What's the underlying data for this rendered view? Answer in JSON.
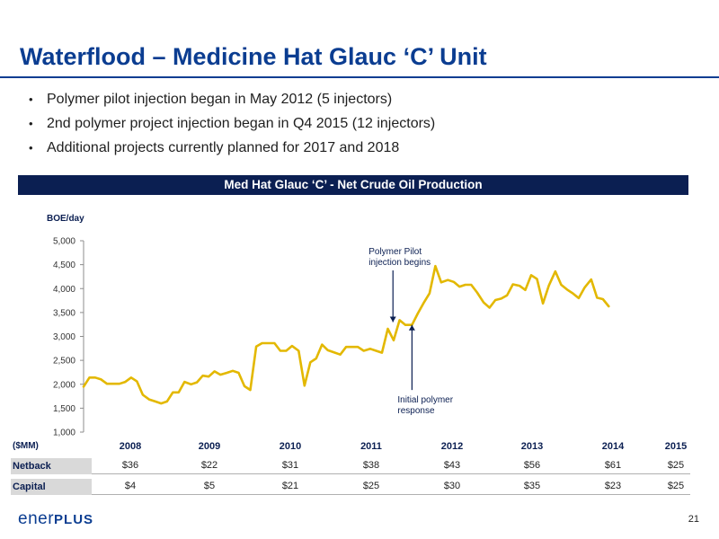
{
  "slide": {
    "title": "Waterflood – Medicine Hat Glauc ‘C’ Unit",
    "bullets": [
      "Polymer pilot injection began in May 2012 (5 injectors)",
      "2nd polymer project injection began in Q4 2015 (12 injectors)",
      "Additional projects currently planned for 2017 and 2018"
    ],
    "chart_banner": "Med Hat Glauc ‘C’ - Net Crude Oil Production",
    "page_number": "21",
    "logo": {
      "text": "ener",
      "plus": "PLUS"
    }
  },
  "chart_data": {
    "type": "line",
    "title": "Med Hat Glauc ‘C’ - Net Crude Oil Production",
    "ylabel": "BOE/day",
    "xlabel": "",
    "ylim": [
      1000,
      5000
    ],
    "yticks": [
      "1,000",
      "1,500",
      "2,000",
      "2,500",
      "3,000",
      "3,500",
      "4,000",
      "4,500",
      "5,000"
    ],
    "ytick_values": [
      1000,
      1500,
      2000,
      2500,
      3000,
      3500,
      4000,
      4500,
      5000
    ],
    "grid": false,
    "xlim": [
      2007.36,
      2015.63
    ],
    "series": [
      {
        "color": "#e3b800",
        "points": [
          [
            2007.36,
            1950
          ],
          [
            2007.44,
            2140
          ],
          [
            2007.52,
            2140
          ],
          [
            2007.6,
            2100
          ],
          [
            2007.68,
            2010
          ],
          [
            2007.76,
            2010
          ],
          [
            2007.85,
            2010
          ],
          [
            2007.93,
            2050
          ],
          [
            2008.01,
            2140
          ],
          [
            2008.09,
            2060
          ],
          [
            2008.17,
            1780
          ],
          [
            2008.26,
            1680
          ],
          [
            2008.34,
            1640
          ],
          [
            2008.42,
            1600
          ],
          [
            2008.5,
            1640
          ],
          [
            2008.58,
            1830
          ],
          [
            2008.66,
            1830
          ],
          [
            2008.74,
            2050
          ],
          [
            2008.83,
            2000
          ],
          [
            2008.91,
            2040
          ],
          [
            2008.99,
            2180
          ],
          [
            2009.07,
            2160
          ],
          [
            2009.15,
            2270
          ],
          [
            2009.23,
            2200
          ],
          [
            2009.32,
            2240
          ],
          [
            2009.4,
            2280
          ],
          [
            2009.48,
            2240
          ],
          [
            2009.56,
            1960
          ],
          [
            2009.64,
            1880
          ],
          [
            2009.72,
            2790
          ],
          [
            2009.8,
            2860
          ],
          [
            2009.89,
            2860
          ],
          [
            2009.97,
            2860
          ],
          [
            2010.05,
            2700
          ],
          [
            2010.13,
            2700
          ],
          [
            2010.21,
            2800
          ],
          [
            2010.3,
            2700
          ],
          [
            2010.38,
            1970
          ],
          [
            2010.46,
            2460
          ],
          [
            2010.54,
            2540
          ],
          [
            2010.62,
            2830
          ],
          [
            2010.7,
            2710
          ],
          [
            2010.78,
            2670
          ],
          [
            2010.87,
            2620
          ],
          [
            2010.95,
            2780
          ],
          [
            2011.03,
            2780
          ],
          [
            2011.11,
            2780
          ],
          [
            2011.19,
            2700
          ],
          [
            2011.28,
            2740
          ],
          [
            2011.36,
            2700
          ],
          [
            2011.44,
            2660
          ],
          [
            2011.52,
            3160
          ],
          [
            2011.6,
            2920
          ],
          [
            2011.68,
            3340
          ],
          [
            2011.76,
            3240
          ],
          [
            2011.85,
            3240
          ],
          [
            2011.93,
            3480
          ],
          [
            2012.01,
            3700
          ],
          [
            2012.09,
            3900
          ],
          [
            2012.17,
            4470
          ],
          [
            2012.25,
            4130
          ],
          [
            2012.34,
            4180
          ],
          [
            2012.42,
            4140
          ],
          [
            2012.5,
            4040
          ],
          [
            2012.58,
            4080
          ],
          [
            2012.66,
            4080
          ],
          [
            2012.74,
            3920
          ],
          [
            2012.83,
            3710
          ],
          [
            2012.91,
            3600
          ],
          [
            2012.99,
            3760
          ],
          [
            2013.07,
            3790
          ],
          [
            2013.15,
            3860
          ],
          [
            2013.23,
            4090
          ],
          [
            2013.32,
            4060
          ],
          [
            2013.4,
            3970
          ],
          [
            2013.48,
            4280
          ],
          [
            2013.56,
            4200
          ],
          [
            2013.64,
            3690
          ],
          [
            2013.72,
            4060
          ],
          [
            2013.81,
            4360
          ],
          [
            2013.89,
            4080
          ],
          [
            2013.97,
            3980
          ],
          [
            2014.05,
            3900
          ],
          [
            2014.13,
            3800
          ],
          [
            2014.21,
            4020
          ],
          [
            2014.3,
            4190
          ],
          [
            2014.38,
            3810
          ],
          [
            2014.46,
            3780
          ],
          [
            2014.54,
            3630
          ]
        ]
      }
    ],
    "annotations": [
      {
        "text": [
          "Polymer Pilot",
          "injection begins"
        ],
        "x": 2011.59,
        "y_from": 4380,
        "y_to": 3300,
        "direction": "down"
      },
      {
        "text": [
          "Initial polymer",
          "response"
        ],
        "x": 2011.85,
        "y_from": 1880,
        "y_to": 3240,
        "direction": "up"
      }
    ]
  },
  "table": {
    "units_label": "($MM)",
    "years": [
      "2008",
      "2009",
      "2010",
      "2011",
      "2012",
      "2013",
      "2014",
      "2015"
    ],
    "rows": [
      {
        "label": "Netback",
        "values": [
          "$36",
          "$22",
          "$31",
          "$38",
          "$43",
          "$56",
          "$61",
          "$25"
        ]
      },
      {
        "label": "Capital",
        "values": [
          "$4",
          "$5",
          "$21",
          "$25",
          "$30",
          "$35",
          "$23",
          "$25"
        ]
      }
    ]
  }
}
